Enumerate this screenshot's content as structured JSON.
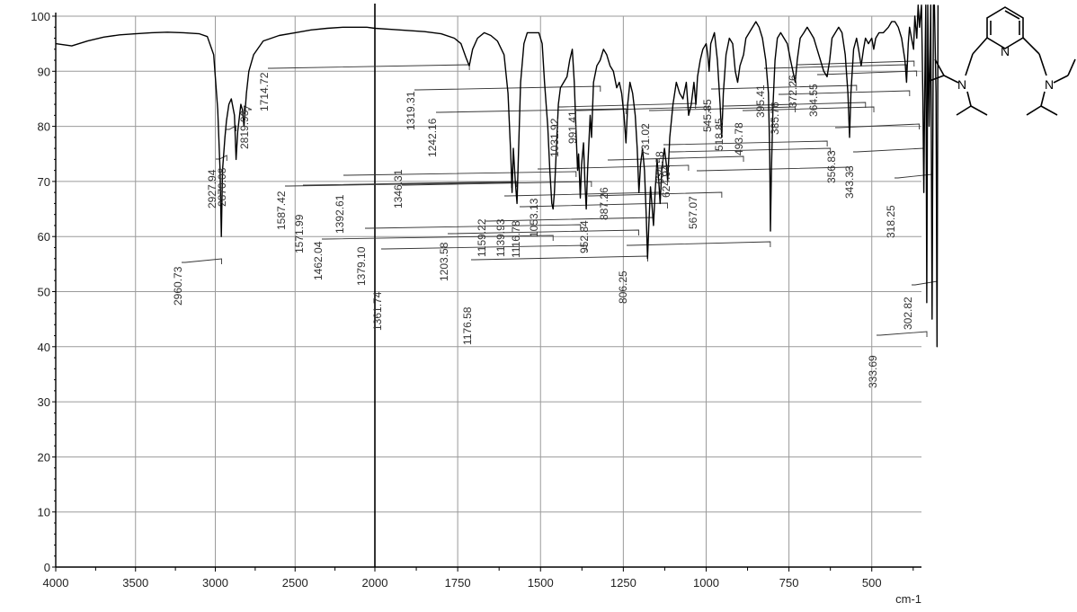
{
  "chart_data": {
    "type": "line",
    "title": "",
    "xlabel": "cm-1",
    "ylabel": "",
    "x_axis": {
      "min": 4000,
      "max": 350,
      "breakpoint_from": 2000,
      "breakpoint_to": 2000,
      "ticks": [
        4000,
        3500,
        3000,
        2500,
        2000,
        1750,
        1500,
        1250,
        1000,
        750,
        500
      ],
      "tick_labels": [
        "4000",
        "3500",
        "3000",
        "2500",
        "2000",
        "1750",
        "1500",
        "1250",
        "1000",
        "750",
        "500"
      ]
    },
    "ylim": [
      0,
      100
    ],
    "y_ticks": [
      0,
      10,
      20,
      30,
      40,
      50,
      60,
      70,
      80,
      90,
      100
    ],
    "y_tick_labels": [
      "0",
      "10",
      "20",
      "30",
      "40",
      "50",
      "60",
      "70",
      "80",
      "90",
      "100"
    ],
    "grid": true,
    "series": [
      {
        "color": "#000000",
        "points": [
          [
            4000,
            95
          ],
          [
            3900,
            94.6
          ],
          [
            3800,
            95.5
          ],
          [
            3700,
            96.2
          ],
          [
            3600,
            96.6
          ],
          [
            3500,
            96.8
          ],
          [
            3400,
            97
          ],
          [
            3300,
            97.1
          ],
          [
            3200,
            97
          ],
          [
            3100,
            96.8
          ],
          [
            3050,
            96.3
          ],
          [
            3010,
            93
          ],
          [
            2985,
            83
          ],
          [
            2970,
            72
          ],
          [
            2962,
            60
          ],
          [
            2955,
            72
          ],
          [
            2940,
            78
          ],
          [
            2930,
            81
          ],
          [
            2915,
            84
          ],
          [
            2900,
            85
          ],
          [
            2880,
            82
          ],
          [
            2870,
            74
          ],
          [
            2860,
            79
          ],
          [
            2840,
            84
          ],
          [
            2830,
            83
          ],
          [
            2820,
            80
          ],
          [
            2805,
            86
          ],
          [
            2790,
            90
          ],
          [
            2760,
            93
          ],
          [
            2700,
            95.5
          ],
          [
            2600,
            96.5
          ],
          [
            2500,
            97
          ],
          [
            2400,
            97.5
          ],
          [
            2300,
            97.8
          ],
          [
            2200,
            98
          ],
          [
            2100,
            98
          ],
          [
            2050,
            98
          ],
          [
            2000,
            97.8
          ],
          [
            1950,
            97.6
          ],
          [
            1900,
            97.4
          ],
          [
            1850,
            97.2
          ],
          [
            1800,
            96.8
          ],
          [
            1760,
            96
          ],
          [
            1740,
            95
          ],
          [
            1725,
            92.5
          ],
          [
            1715,
            91
          ],
          [
            1705,
            94
          ],
          [
            1690,
            96
          ],
          [
            1670,
            97
          ],
          [
            1650,
            96.5
          ],
          [
            1630,
            95.5
          ],
          [
            1610,
            93
          ],
          [
            1598,
            86
          ],
          [
            1590,
            75
          ],
          [
            1586,
            68
          ],
          [
            1582,
            76
          ],
          [
            1576,
            70
          ],
          [
            1571,
            66
          ],
          [
            1566,
            76
          ],
          [
            1560,
            88
          ],
          [
            1550,
            95
          ],
          [
            1540,
            97
          ],
          [
            1520,
            97
          ],
          [
            1505,
            97
          ],
          [
            1495,
            95
          ],
          [
            1488,
            88
          ],
          [
            1478,
            80
          ],
          [
            1472,
            72
          ],
          [
            1466,
            66
          ],
          [
            1462,
            65
          ],
          [
            1458,
            68
          ],
          [
            1452,
            76
          ],
          [
            1446,
            84
          ],
          [
            1440,
            87
          ],
          [
            1430,
            88
          ],
          [
            1420,
            89
          ],
          [
            1412,
            92
          ],
          [
            1404,
            94
          ],
          [
            1398,
            88
          ],
          [
            1392,
            78
          ],
          [
            1388,
            72
          ],
          [
            1385,
            75
          ],
          [
            1380,
            67
          ],
          [
            1376,
            73
          ],
          [
            1370,
            77
          ],
          [
            1366,
            70
          ],
          [
            1362,
            65
          ],
          [
            1358,
            72
          ],
          [
            1350,
            82
          ],
          [
            1346,
            78
          ],
          [
            1340,
            88
          ],
          [
            1330,
            91
          ],
          [
            1320,
            92
          ],
          [
            1310,
            94
          ],
          [
            1300,
            93
          ],
          [
            1290,
            91
          ],
          [
            1280,
            90
          ],
          [
            1270,
            87
          ],
          [
            1262,
            88
          ],
          [
            1255,
            86
          ],
          [
            1248,
            82
          ],
          [
            1242,
            77
          ],
          [
            1237,
            84
          ],
          [
            1230,
            88
          ],
          [
            1222,
            86
          ],
          [
            1214,
            82
          ],
          [
            1208,
            76
          ],
          [
            1203,
            68
          ],
          [
            1198,
            73
          ],
          [
            1192,
            76
          ],
          [
            1186,
            72
          ],
          [
            1181,
            64
          ],
          [
            1177,
            56
          ],
          [
            1173,
            62
          ],
          [
            1168,
            69
          ],
          [
            1164,
            66
          ],
          [
            1159,
            62
          ],
          [
            1154,
            68
          ],
          [
            1148,
            74
          ],
          [
            1142,
            69
          ],
          [
            1139,
            66
          ],
          [
            1134,
            72
          ],
          [
            1126,
            76
          ],
          [
            1120,
            73
          ],
          [
            1116,
            70
          ],
          [
            1110,
            78
          ],
          [
            1100,
            84
          ],
          [
            1090,
            88
          ],
          [
            1080,
            86
          ],
          [
            1070,
            85
          ],
          [
            1060,
            88
          ],
          [
            1053,
            82
          ],
          [
            1045,
            84
          ],
          [
            1037,
            88
          ],
          [
            1031,
            84
          ],
          [
            1026,
            89
          ],
          [
            1018,
            92
          ],
          [
            1010,
            94
          ],
          [
            1000,
            95
          ],
          [
            995,
            93
          ],
          [
            991,
            90
          ],
          [
            986,
            95
          ],
          [
            975,
            97
          ],
          [
            966,
            92
          ],
          [
            958,
            84
          ],
          [
            953,
            78
          ],
          [
            948,
            86
          ],
          [
            940,
            93
          ],
          [
            930,
            96
          ],
          [
            920,
            95
          ],
          [
            912,
            90
          ],
          [
            905,
            88
          ],
          [
            898,
            91
          ],
          [
            887,
            93
          ],
          [
            880,
            96
          ],
          [
            870,
            97
          ],
          [
            860,
            98
          ],
          [
            850,
            99
          ],
          [
            840,
            98
          ],
          [
            830,
            96
          ],
          [
            820,
            92
          ],
          [
            812,
            86
          ],
          [
            808,
            75
          ],
          [
            806,
            61
          ],
          [
            803,
            72
          ],
          [
            798,
            84
          ],
          [
            792,
            92
          ],
          [
            785,
            96
          ],
          [
            775,
            97
          ],
          [
            765,
            96
          ],
          [
            755,
            95
          ],
          [
            745,
            92
          ],
          [
            738,
            90
          ],
          [
            731,
            88
          ],
          [
            725,
            92
          ],
          [
            716,
            96
          ],
          [
            705,
            97
          ],
          [
            695,
            98
          ],
          [
            685,
            97
          ],
          [
            675,
            96
          ],
          [
            665,
            94
          ],
          [
            655,
            92
          ],
          [
            645,
            90
          ],
          [
            635,
            89
          ],
          [
            627,
            92
          ],
          [
            620,
            96
          ],
          [
            610,
            97
          ],
          [
            600,
            98
          ],
          [
            590,
            97
          ],
          [
            580,
            93
          ],
          [
            572,
            86
          ],
          [
            567,
            78
          ],
          [
            563,
            86
          ],
          [
            555,
            94
          ],
          [
            546,
            96
          ],
          [
            540,
            94
          ],
          [
            532,
            91
          ],
          [
            525,
            94
          ],
          [
            519,
            96
          ],
          [
            510,
            95
          ],
          [
            500,
            96
          ],
          [
            494,
            94
          ],
          [
            488,
            96
          ],
          [
            478,
            97
          ],
          [
            465,
            97
          ],
          [
            450,
            98
          ],
          [
            440,
            99
          ],
          [
            430,
            99
          ],
          [
            420,
            98
          ],
          [
            410,
            96
          ],
          [
            400,
            92
          ],
          [
            395,
            88
          ],
          [
            390,
            95
          ],
          [
            386,
            98
          ],
          [
            380,
            96
          ],
          [
            374,
            94
          ],
          [
            370,
            100
          ],
          [
            364,
            96
          ],
          [
            360,
            102
          ],
          [
            356,
            98
          ],
          [
            350,
            102
          ],
          [
            346,
            86
          ],
          [
            343,
            68
          ],
          [
            340,
            88
          ],
          [
            337,
            102
          ],
          [
            334,
            48
          ],
          [
            331,
            102
          ],
          [
            327,
            80
          ],
          [
            322,
            102
          ],
          [
            318,
            45
          ],
          [
            314,
            102
          ],
          [
            311,
            102
          ],
          [
            306,
            86
          ],
          [
            303,
            40
          ],
          [
            300,
            102
          ]
        ]
      }
    ],
    "peaks": [
      {
        "x": 2960.73,
        "label": "2960.73"
      },
      {
        "x": 2927.94,
        "label": "2927.94"
      },
      {
        "x": 2870.08,
        "label": "2870.08"
      },
      {
        "x": 2819.93,
        "label": "2819.93"
      },
      {
        "x": 1714.72,
        "label": "1714.72"
      },
      {
        "x": 1587.42,
        "label": "1587.42"
      },
      {
        "x": 1571.99,
        "label": "1571.99"
      },
      {
        "x": 1462.04,
        "label": "1462.04"
      },
      {
        "x": 1392.61,
        "label": "1392.61"
      },
      {
        "x": 1379.1,
        "label": "1379.10"
      },
      {
        "x": 1361.74,
        "label": "1361.74"
      },
      {
        "x": 1346.31,
        "label": "1346.31"
      },
      {
        "x": 1319.31,
        "label": "1319.31"
      },
      {
        "x": 1242.16,
        "label": "1242.16"
      },
      {
        "x": 1203.58,
        "label": "1203.58"
      },
      {
        "x": 1176.58,
        "label": "1176.58"
      },
      {
        "x": 1159.22,
        "label": "1159.22"
      },
      {
        "x": 1139.93,
        "label": "1139.93"
      },
      {
        "x": 1116.78,
        "label": "1116.78"
      },
      {
        "x": 1053.13,
        "label": "1053.13"
      },
      {
        "x": 1031.92,
        "label": "1031.92"
      },
      {
        "x": 991.41,
        "label": "991.41"
      },
      {
        "x": 952.84,
        "label": "952.84"
      },
      {
        "x": 887.26,
        "label": "887.26"
      },
      {
        "x": 806.25,
        "label": "806.25"
      },
      {
        "x": 731.02,
        "label": "731.02"
      },
      {
        "x": 634.58,
        "label": "634.58"
      },
      {
        "x": 624.94,
        "label": "624.94"
      },
      {
        "x": 567.07,
        "label": "567.07"
      },
      {
        "x": 545.85,
        "label": "545.85"
      },
      {
        "x": 518.85,
        "label": "518.85"
      },
      {
        "x": 493.78,
        "label": "493.78"
      },
      {
        "x": 395.41,
        "label": "395.41"
      },
      {
        "x": 385.76,
        "label": "385.76"
      },
      {
        "x": 372.26,
        "label": "372.26"
      },
      {
        "x": 364.55,
        "label": "364.55"
      },
      {
        "x": 356.83,
        "label": "356.83"
      },
      {
        "x": 343.33,
        "label": "343.33"
      },
      {
        "x": 333.69,
        "label": "333.69"
      },
      {
        "x": 318.25,
        "label": "318.25"
      },
      {
        "x": 302.82,
        "label": "302.82"
      }
    ]
  },
  "structure": {
    "atom_labels": [
      "N",
      "N",
      "N"
    ]
  }
}
